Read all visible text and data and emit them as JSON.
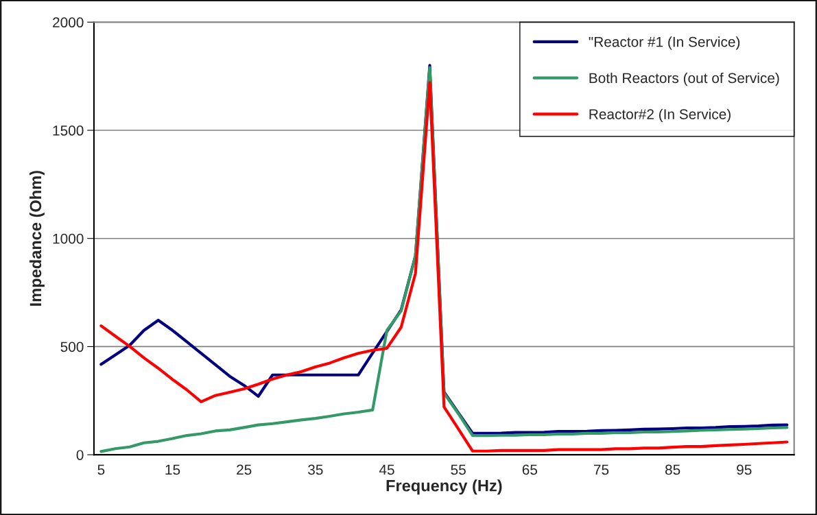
{
  "chart_data": {
    "type": "line",
    "xlabel": "Frequency (Hz)",
    "ylabel": "Impedance (Ohm)",
    "categories": [
      "5",
      null,
      null,
      null,
      null,
      "15",
      null,
      null,
      null,
      null,
      "25",
      null,
      null,
      null,
      null,
      "35",
      null,
      null,
      null,
      null,
      "45",
      null,
      null,
      null,
      null,
      "55",
      null,
      null,
      null,
      null,
      "65",
      null,
      null,
      null,
      null,
      "75",
      null,
      null,
      null,
      null,
      "85",
      null,
      null,
      null,
      null,
      "95",
      null,
      null,
      null
    ],
    "series": [
      {
        "name": "\"Reactor #1 (In Service)",
        "color": "#000080",
        "values": [
          418,
          462,
          506,
          575,
          622,
          575,
          522,
          469,
          416,
          363,
          321,
          270,
          369,
          369,
          369,
          369,
          369,
          369,
          369,
          470,
          570,
          670,
          920,
          1800,
          290,
          194,
          99,
          99,
          100,
          103,
          103,
          104,
          108,
          108,
          109,
          112,
          113,
          115,
          118,
          119,
          121,
          124,
          124,
          126,
          130,
          131,
          133,
          137,
          138
        ]
      },
      {
        "name": "Both Reactors (out of Service)",
        "color": "#339966",
        "values": [
          15,
          28,
          36,
          55,
          62,
          75,
          89,
          97,
          110,
          115,
          126,
          138,
          144,
          152,
          161,
          168,
          178,
          189,
          197,
          207,
          575,
          665,
          920,
          1790,
          285,
          190,
          89,
          89,
          90,
          90,
          93,
          93,
          96,
          96,
          99,
          99,
          102,
          102,
          105,
          105,
          108,
          110,
          113,
          115,
          117,
          119,
          121,
          124,
          126
        ]
      },
      {
        "name": "Reactor#2 (In Service)",
        "color": "#ff0000",
        "values": [
          596,
          548,
          501,
          448,
          400,
          348,
          300,
          245,
          274,
          289,
          305,
          326,
          350,
          369,
          384,
          406,
          424,
          448,
          469,
          483,
          492,
          590,
          839,
          1721,
          221,
          120,
          17,
          17,
          20,
          20,
          20,
          20,
          24,
          24,
          24,
          24,
          28,
          28,
          31,
          31,
          35,
          38,
          38,
          42,
          45,
          48,
          52,
          55,
          59
        ]
      }
    ],
    "ylim": [
      0,
      2000
    ],
    "yticks": [
      0,
      500,
      1000,
      1500,
      2000
    ],
    "grid": "y",
    "legend": "top right",
    "marker": "none",
    "line_style": "solid"
  }
}
